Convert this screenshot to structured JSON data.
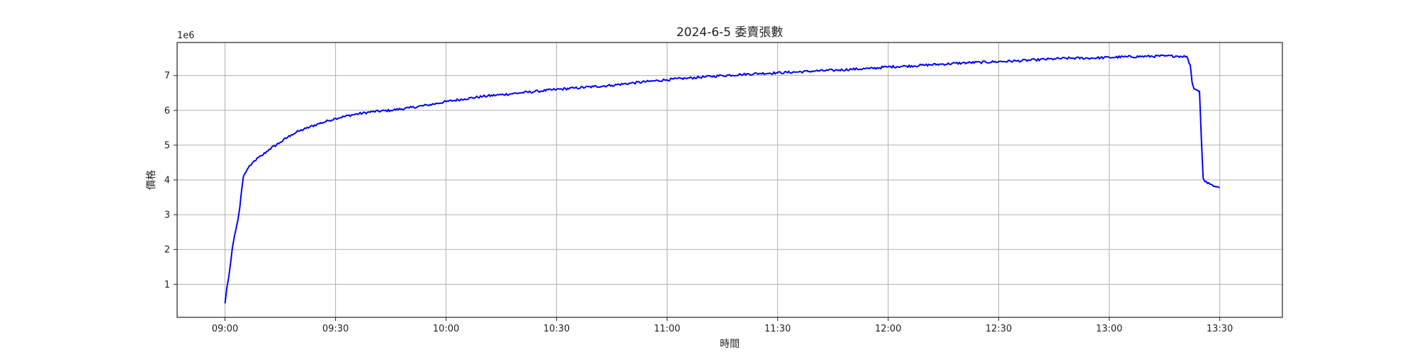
{
  "chart_data": {
    "type": "line",
    "title": "2024-6-5 委賣張數",
    "xlabel": "時間",
    "ylabel": "價格",
    "y_offset_label": "1e6",
    "y_multiplier": 1000000,
    "xlim": [
      "08:47",
      "13:47"
    ],
    "ylim": [
      0.05,
      7.95
    ],
    "x_ticks": [
      "09:00",
      "09:30",
      "10:00",
      "10:30",
      "11:00",
      "11:30",
      "12:00",
      "12:30",
      "13:00",
      "13:30"
    ],
    "y_ticks": [
      1,
      2,
      3,
      4,
      5,
      6,
      7
    ],
    "y_tick_labels": [
      "1",
      "2",
      "3",
      "4",
      "5",
      "6",
      "7"
    ],
    "grid": true,
    "series": [
      {
        "color": "#0000ff",
        "points": [
          [
            "09:00",
            0.45
          ],
          [
            "09:00.5",
            0.9
          ],
          [
            "09:01",
            1.2
          ],
          [
            "09:01.5",
            1.6
          ],
          [
            "09:02",
            2.05
          ],
          [
            "09:02.5",
            2.35
          ],
          [
            "09:03",
            2.6
          ],
          [
            "09:03.5",
            2.85
          ],
          [
            "09:04",
            3.2
          ],
          [
            "09:04.5",
            3.7
          ],
          [
            "09:05",
            4.1
          ],
          [
            "09:06",
            4.3
          ],
          [
            "09:07",
            4.42
          ],
          [
            "09:08",
            4.55
          ],
          [
            "09:10",
            4.7
          ],
          [
            "09:12",
            4.88
          ],
          [
            "09:15",
            5.08
          ],
          [
            "09:18",
            5.3
          ],
          [
            "09:20",
            5.4
          ],
          [
            "09:22",
            5.48
          ],
          [
            "09:25",
            5.6
          ],
          [
            "09:28",
            5.7
          ],
          [
            "09:30",
            5.77
          ],
          [
            "09:35",
            5.88
          ],
          [
            "09:40",
            5.96
          ],
          [
            "09:45",
            6.0
          ],
          [
            "09:50",
            6.07
          ],
          [
            "09:55",
            6.15
          ],
          [
            "10:00",
            6.25
          ],
          [
            "10:05",
            6.33
          ],
          [
            "10:10",
            6.4
          ],
          [
            "10:15",
            6.45
          ],
          [
            "10:20",
            6.5
          ],
          [
            "10:25",
            6.55
          ],
          [
            "10:30",
            6.6
          ],
          [
            "10:35",
            6.64
          ],
          [
            "10:40",
            6.68
          ],
          [
            "10:45",
            6.72
          ],
          [
            "10:50",
            6.78
          ],
          [
            "10:55",
            6.83
          ],
          [
            "11:00",
            6.88
          ],
          [
            "11:05",
            6.92
          ],
          [
            "11:10",
            6.96
          ],
          [
            "11:15",
            7.0
          ],
          [
            "11:20",
            7.03
          ],
          [
            "11:25",
            7.06
          ],
          [
            "11:30",
            7.08
          ],
          [
            "11:35",
            7.1
          ],
          [
            "11:40",
            7.13
          ],
          [
            "11:45",
            7.15
          ],
          [
            "11:50",
            7.18
          ],
          [
            "11:55",
            7.2
          ],
          [
            "12:00",
            7.25
          ],
          [
            "12:05",
            7.27
          ],
          [
            "12:10",
            7.3
          ],
          [
            "12:15",
            7.33
          ],
          [
            "12:20",
            7.36
          ],
          [
            "12:25",
            7.38
          ],
          [
            "12:30",
            7.4
          ],
          [
            "12:35",
            7.42
          ],
          [
            "12:40",
            7.45
          ],
          [
            "12:45",
            7.48
          ],
          [
            "12:50",
            7.5
          ],
          [
            "12:55",
            7.5
          ],
          [
            "13:00",
            7.52
          ],
          [
            "13:05",
            7.54
          ],
          [
            "13:10",
            7.55
          ],
          [
            "13:15",
            7.56
          ],
          [
            "13:18",
            7.56
          ],
          [
            "13:21",
            7.55
          ],
          [
            "13:22",
            7.3
          ],
          [
            "13:22.5",
            6.8
          ],
          [
            "13:23",
            6.62
          ],
          [
            "13:24",
            6.58
          ],
          [
            "13:24.5",
            6.55
          ],
          [
            "13:25",
            5.2
          ],
          [
            "13:25.5",
            4.05
          ],
          [
            "13:26",
            3.95
          ],
          [
            "13:27",
            3.92
          ],
          [
            "13:28",
            3.85
          ],
          [
            "13:29",
            3.8
          ],
          [
            "13:30",
            3.78
          ]
        ]
      }
    ]
  }
}
